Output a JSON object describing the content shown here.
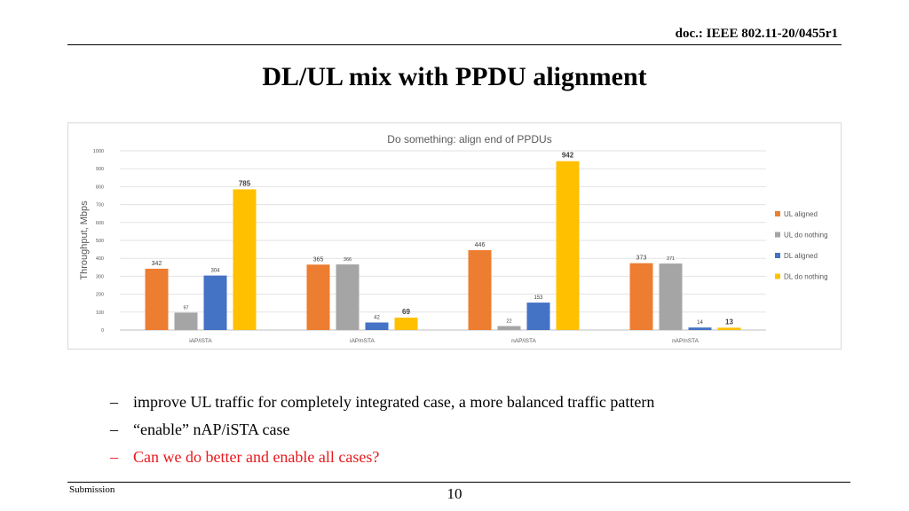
{
  "header": {
    "doc_id": "doc.: IEEE 802.11-20/0455r1",
    "title": "DL/UL mix with PPDU alignment"
  },
  "chart_data": {
    "type": "bar",
    "title": "Do something: align end of PPDUs",
    "ylabel": "Throughput, Mbps",
    "xlabel": "",
    "ylim": [
      0,
      1000
    ],
    "yticks": [
      0,
      100,
      200,
      300,
      400,
      500,
      600,
      700,
      800,
      900,
      1000
    ],
    "grid": true,
    "legend_position": "right",
    "categories": [
      "iAP/iSTA",
      "iAP/nSTA",
      "nAP/iSTA",
      "nAP/nSTA"
    ],
    "series": [
      {
        "name": "UL aligned",
        "color": "#ed7d31",
        "values": [
          342,
          365,
          446,
          373
        ]
      },
      {
        "name": "UL do nothing",
        "color": "#a5a5a5",
        "values": [
          97,
          366,
          22,
          371
        ]
      },
      {
        "name": "DL aligned",
        "color": "#4472c4",
        "values": [
          304,
          42,
          153,
          14
        ]
      },
      {
        "name": "DL do nothing",
        "color": "#ffc000",
        "values": [
          785,
          69,
          942,
          13
        ]
      }
    ]
  },
  "bullets": [
    {
      "dash": "–",
      "text": "improve UL traffic for completely integrated case, a more balanced traffic pattern"
    },
    {
      "dash": "–",
      "text": "“enable” nAP/iSTA case"
    },
    {
      "dash": "–",
      "text": "Can we do better and enable all cases?"
    }
  ],
  "footer": {
    "left": "Submission",
    "page": "10"
  }
}
